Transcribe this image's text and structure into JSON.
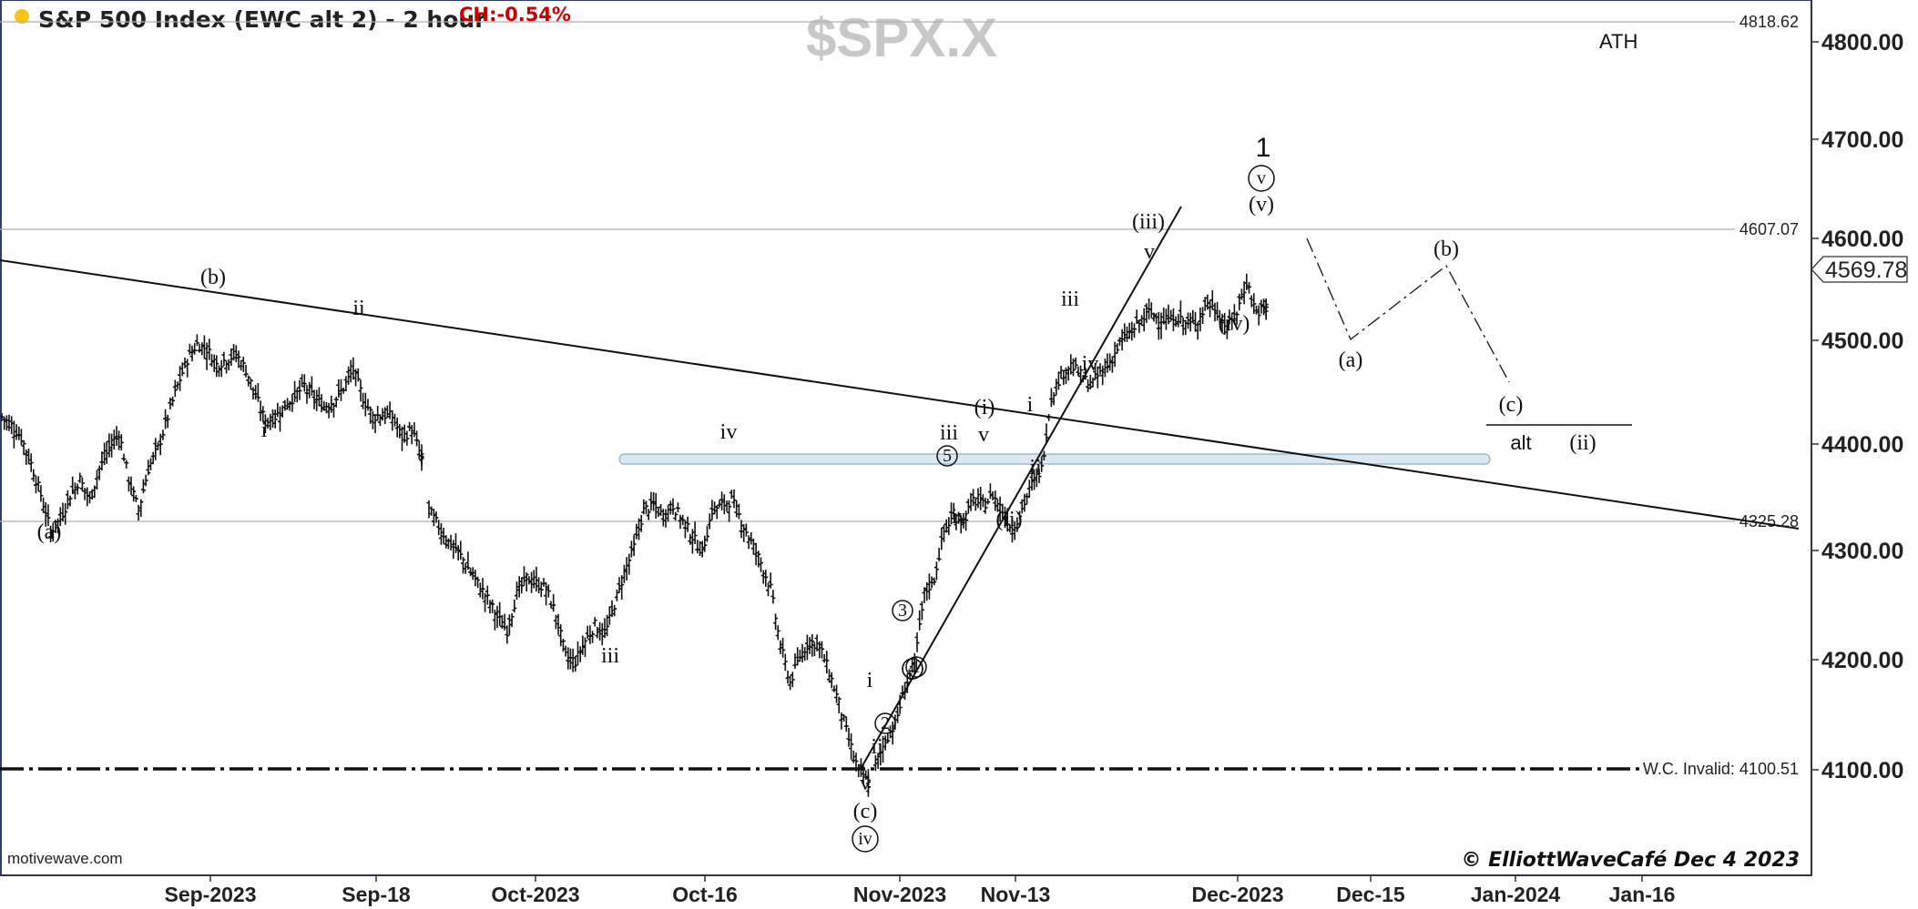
{
  "header": {
    "title": "S&P 500 Index (EWC alt 2) - 2 hour",
    "change": "CH:-0.54%",
    "symbol_watermark": "$SPX.X",
    "status_dot_color": "#f5c518",
    "change_color": "#cc0000"
  },
  "footer": {
    "platform": "motivewave.com",
    "credit": "© ElliottWaveCafé Dec 4 2023"
  },
  "colors": {
    "bars": "#111111",
    "lines": "#111111",
    "level_lines": "#b0b0b0",
    "support_zone_fill": "#dbe8f2",
    "support_zone_stroke": "#8fb0c8"
  },
  "chart_data": {
    "type": "ohlc",
    "ylim": [
      4020,
      4860
    ],
    "y_ticks": [
      4100,
      4200,
      4300,
      4400,
      4500,
      4600,
      4700,
      4800
    ],
    "y_tick_labels": [
      "4100.00",
      "4200.00",
      "4300.00",
      "4400.00",
      "4500.00",
      "4600.00",
      "4700.00",
      "4800.00"
    ],
    "x_tick_labels": [
      "Sep-2023",
      "Sep-18",
      "Oct-2023",
      "Oct-16",
      "Nov-2023",
      "Nov-13",
      "Dec-2023",
      "Dec-15",
      "Jan-2024",
      "Jan-16"
    ],
    "last_price": "4569.78",
    "levels": [
      {
        "value": 4818.62,
        "label": "4818.62",
        "note": "ATH"
      },
      {
        "value": 4607.07,
        "label": "4607.07"
      },
      {
        "value": 4325.28,
        "label": "4325.28"
      },
      {
        "value": 4100.51,
        "label": "W.C. Invalid: 4100.51"
      }
    ],
    "series": [
      {
        "points": [
          [
            0,
            4460
          ],
          [
            8,
            4452
          ],
          [
            16,
            4440
          ],
          [
            24,
            4415
          ],
          [
            32,
            4385
          ],
          [
            40,
            4350
          ],
          [
            48,
            4362
          ],
          [
            56,
            4385
          ],
          [
            64,
            4400
          ],
          [
            72,
            4380
          ],
          [
            80,
            4410
          ],
          [
            88,
            4430
          ],
          [
            96,
            4445
          ],
          [
            104,
            4400
          ],
          [
            112,
            4370
          ],
          [
            120,
            4410
          ],
          [
            128,
            4430
          ],
          [
            136,
            4460
          ],
          [
            144,
            4490
          ],
          [
            152,
            4515
          ],
          [
            160,
            4530
          ],
          [
            168,
            4525
          ],
          [
            176,
            4510
          ],
          [
            184,
            4515
          ],
          [
            192,
            4520
          ],
          [
            200,
            4505
          ],
          [
            208,
            4480
          ],
          [
            216,
            4455
          ],
          [
            224,
            4460
          ],
          [
            232,
            4470
          ],
          [
            240,
            4480
          ],
          [
            248,
            4490
          ],
          [
            256,
            4478
          ],
          [
            264,
            4470
          ],
          [
            272,
            4475
          ],
          [
            280,
            4488
          ],
          [
            288,
            4505
          ],
          [
            296,
            4478
          ],
          [
            304,
            4460
          ],
          [
            312,
            4462
          ],
          [
            320,
            4460
          ],
          [
            328,
            4440
          ],
          [
            336,
            4448
          ],
          [
            344,
            4420
          ]
        ]
      },
      {
        "points": [
          [
            350,
            4370
          ],
          [
            358,
            4355
          ],
          [
            366,
            4340
          ],
          [
            374,
            4330
          ],
          [
            382,
            4315
          ],
          [
            390,
            4300
          ],
          [
            398,
            4285
          ],
          [
            406,
            4268
          ],
          [
            414,
            4255
          ],
          [
            422,
            4290
          ],
          [
            430,
            4305
          ],
          [
            438,
            4300
          ],
          [
            446,
            4295
          ],
          [
            454,
            4270
          ],
          [
            462,
            4230
          ],
          [
            470,
            4225
          ],
          [
            478,
            4245
          ],
          [
            486,
            4260
          ],
          [
            494,
            4250
          ],
          [
            502,
            4280
          ],
          [
            510,
            4310
          ],
          [
            518,
            4335
          ],
          [
            526,
            4370
          ],
          [
            534,
            4375
          ],
          [
            542,
            4365
          ],
          [
            550,
            4375
          ],
          [
            558,
            4360
          ],
          [
            566,
            4345
          ],
          [
            574,
            4330
          ],
          [
            582,
            4370
          ],
          [
            590,
            4375
          ],
          [
            598,
            4380
          ],
          [
            606,
            4360
          ],
          [
            614,
            4340
          ],
          [
            622,
            4320
          ],
          [
            630,
            4295
          ],
          [
            638,
            4240
          ],
          [
            646,
            4205
          ],
          [
            654,
            4230
          ],
          [
            662,
            4245
          ],
          [
            670,
            4240
          ],
          [
            678,
            4215
          ],
          [
            686,
            4185
          ],
          [
            694,
            4150
          ],
          [
            702,
            4120
          ],
          [
            710,
            4108
          ]
        ]
      },
      {
        "points": [
          [
            716,
            4125
          ],
          [
            724,
            4150
          ],
          [
            732,
            4165
          ],
          [
            740,
            4200
          ],
          [
            748,
            4225
          ],
          [
            756,
            4290
          ],
          [
            764,
            4305
          ],
          [
            772,
            4350
          ],
          [
            780,
            4365
          ],
          [
            788,
            4360
          ],
          [
            796,
            4380
          ],
          [
            804,
            4375
          ],
          [
            812,
            4385
          ],
          [
            820,
            4370
          ],
          [
            828,
            4352
          ],
          [
            836,
            4372
          ],
          [
            844,
            4395
          ],
          [
            852,
            4410
          ],
          [
            860,
            4480
          ],
          [
            868,
            4500
          ],
          [
            876,
            4510
          ],
          [
            884,
            4500
          ],
          [
            892,
            4490
          ],
          [
            900,
            4502
          ],
          [
            908,
            4512
          ],
          [
            916,
            4530
          ],
          [
            924,
            4540
          ],
          [
            932,
            4550
          ],
          [
            940,
            4560
          ],
          [
            948,
            4555
          ],
          [
            956,
            4552
          ],
          [
            964,
            4555
          ],
          [
            972,
            4548
          ],
          [
            980,
            4552
          ],
          [
            988,
            4570
          ],
          [
            996,
            4560
          ],
          [
            1004,
            4545
          ],
          [
            1012,
            4560
          ],
          [
            1020,
            4590
          ],
          [
            1028,
            4560
          ],
          [
            1036,
            4565
          ]
        ]
      }
    ],
    "trendlines": [
      {
        "from": [
          -5,
          4580
        ],
        "to": [
          1480,
          4315
        ]
      },
      {
        "from": [
          704,
          4100
        ],
        "to": [
          966,
          4630
        ]
      }
    ],
    "support_zone": {
      "from_x": 508,
      "to_x": 1218,
      "value": 4385
    },
    "projection": [
      [
        1068,
        4600
      ],
      [
        1103,
        4502
      ],
      [
        1182,
        4570
      ],
      [
        1232,
        4440
      ]
    ],
    "alt_target_line": {
      "from_x": 1214,
      "to_x": 1334,
      "value": 4418
    },
    "wave_labels": [
      "(a)",
      "(b)",
      "i",
      "ii",
      "iii",
      "iv",
      "v",
      "(c)",
      "iv",
      "i",
      "ii",
      "1",
      "2",
      "3",
      "4",
      "5",
      "iii",
      "v",
      "iv",
      "(i)",
      "(ii)",
      "i",
      "ii",
      "iii",
      "iv",
      "v",
      "(iii)",
      "(iv)",
      "(v)",
      "v",
      "1",
      "(a)",
      "(b)",
      "(c)",
      "alt",
      "(ii)"
    ]
  }
}
